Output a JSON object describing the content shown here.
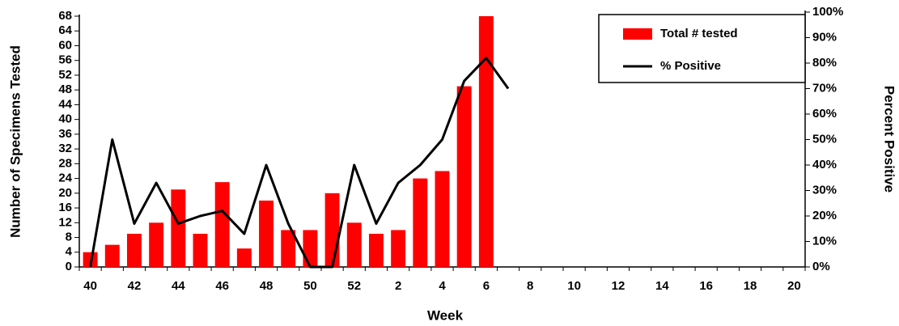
{
  "chart_data": {
    "type": "bar_line",
    "x_label": "Week",
    "y_label": "Number of Specimens Tested",
    "y2_label": "Percent Positive",
    "categories": [
      40,
      null,
      42,
      null,
      44,
      null,
      46,
      null,
      48,
      null,
      50,
      null,
      52,
      null,
      2,
      null,
      4,
      null,
      6,
      null,
      8,
      null,
      10,
      null,
      12,
      null,
      14,
      null,
      16,
      null,
      18,
      null,
      20
    ],
    "series": [
      {
        "name": "Total # tested",
        "type": "bar",
        "color": "#ff0000",
        "values": [
          4,
          6,
          9,
          12,
          21,
          9,
          23,
          5,
          18,
          10,
          10,
          20,
          12,
          9,
          10,
          24,
          26,
          49,
          68,
          null,
          null,
          null,
          null,
          null,
          null,
          null,
          null,
          null,
          null,
          null,
          null,
          null,
          null
        ]
      },
      {
        "name": "% Positive",
        "type": "line",
        "axis": "y2",
        "color": "#000000",
        "values": [
          0,
          50,
          17,
          33,
          17,
          20,
          22,
          13,
          40,
          17,
          0,
          0,
          40,
          17,
          33,
          40,
          50,
          73,
          82,
          70,
          null,
          null,
          null,
          null,
          null,
          null,
          null,
          null,
          null,
          null,
          null,
          null,
          null
        ]
      }
    ],
    "ylim": [
      0,
      68
    ],
    "yticks": [
      0,
      4,
      8,
      12,
      16,
      20,
      24,
      28,
      32,
      36,
      40,
      44,
      48,
      52,
      56,
      60,
      64,
      68
    ],
    "y2lim": [
      0,
      100
    ],
    "y2ticks": [
      {
        "value": 0,
        "label": "0%"
      },
      {
        "value": 10,
        "label": "10%"
      },
      {
        "value": 20,
        "label": "20%"
      },
      {
        "value": 30,
        "label": "30%"
      },
      {
        "value": 40,
        "label": "40%"
      },
      {
        "value": 50,
        "label": "50%"
      },
      {
        "value": 60,
        "label": "60%"
      },
      {
        "value": 70,
        "label": "70%"
      },
      {
        "value": 80,
        "label": "80%"
      },
      {
        "value": 90,
        "label": "90%"
      },
      {
        "value": 100,
        "label": "100%"
      }
    ],
    "legend": "top-right"
  }
}
